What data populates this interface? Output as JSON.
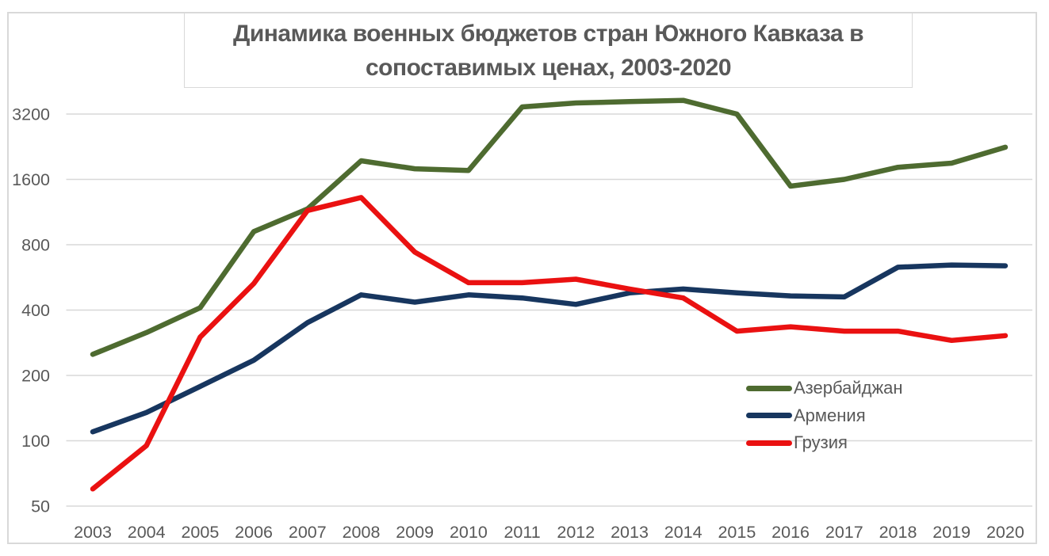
{
  "chart_data": {
    "type": "line",
    "title": "Динамика военных бюджетов стран Южного Кавказа в сопоставимых ценах, 2003-2020",
    "title_line1": "Динамика военных бюджетов стран Южного Кавказа в",
    "title_line2": "сопоставимых ценах, 2003-2020",
    "x_categories": [
      "2003",
      "2004",
      "2005",
      "2006",
      "2007",
      "2008",
      "2009",
      "2010",
      "2011",
      "2012",
      "2013",
      "2014",
      "2015",
      "2016",
      "2017",
      "2018",
      "2019",
      "2020"
    ],
    "y_ticks": [
      3200,
      1600,
      800,
      400,
      200,
      100,
      50
    ],
    "y_scale": "log2",
    "ylim": [
      50,
      3200
    ],
    "grid": "horizontal",
    "legend_position": "right-middle",
    "series": [
      {
        "id": "azerbaijan",
        "name": "Азербайджан",
        "color": "#4e6b30",
        "values": [
          250,
          315,
          410,
          920,
          1170,
          1950,
          1790,
          1760,
          3450,
          3600,
          3650,
          3700,
          3200,
          1490,
          1600,
          1820,
          1900,
          2250
        ]
      },
      {
        "id": "armenia",
        "name": "Армения",
        "color": "#17365f",
        "values": [
          110,
          135,
          178,
          235,
          350,
          470,
          435,
          470,
          455,
          425,
          480,
          500,
          480,
          465,
          460,
          630,
          645,
          640
        ]
      },
      {
        "id": "georgia",
        "name": "Грузия",
        "color": "#ea1111",
        "values": [
          60,
          95,
          300,
          530,
          1150,
          1320,
          740,
          535,
          535,
          555,
          500,
          455,
          320,
          335,
          320,
          320,
          290,
          305
        ]
      }
    ],
    "colors": {
      "grid": "#d8d8d8",
      "frame_border": "#d9d9d9",
      "text": "#595959"
    }
  }
}
